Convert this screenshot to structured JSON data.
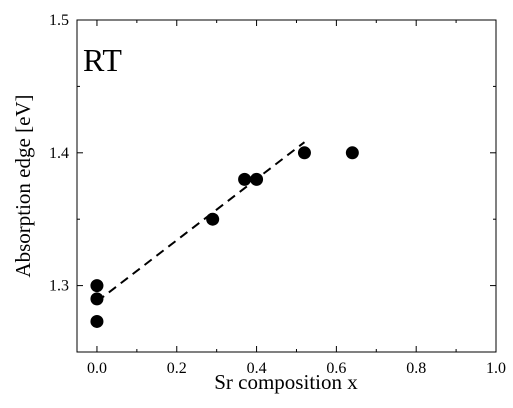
{
  "chart_data": {
    "type": "scatter",
    "title": "",
    "xlabel": "Sr composition x",
    "ylabel": "Absorption edge [eV]",
    "xlim": [
      -0.05,
      1.0
    ],
    "ylim": [
      1.25,
      1.5
    ],
    "xticks": [
      "0.0",
      "0.2",
      "0.4",
      "0.6",
      "0.8",
      "1.0"
    ],
    "xtick_values": [
      0.0,
      0.2,
      0.4,
      0.6,
      0.8,
      1.0
    ],
    "yticks": [
      "1.3",
      "1.4",
      "1.5"
    ],
    "ytick_values": [
      1.3,
      1.4,
      1.5
    ],
    "annotation": "RT",
    "grid": false,
    "legend": "none",
    "series": [
      {
        "marker": "filled-circle",
        "color": "#000000",
        "points": [
          {
            "x": 0.0,
            "y": 1.3
          },
          {
            "x": 0.0,
            "y": 1.29
          },
          {
            "x": 0.0,
            "y": 1.273
          },
          {
            "x": 0.29,
            "y": 1.35
          },
          {
            "x": 0.37,
            "y": 1.38
          },
          {
            "x": 0.4,
            "y": 1.38
          },
          {
            "x": 0.52,
            "y": 1.4
          },
          {
            "x": 0.64,
            "y": 1.4
          }
        ]
      }
    ],
    "fit_line": {
      "style": "dashed",
      "color": "#000000",
      "from": {
        "x": 0.0,
        "y": 1.288
      },
      "to": {
        "x": 0.52,
        "y": 1.408
      }
    }
  }
}
